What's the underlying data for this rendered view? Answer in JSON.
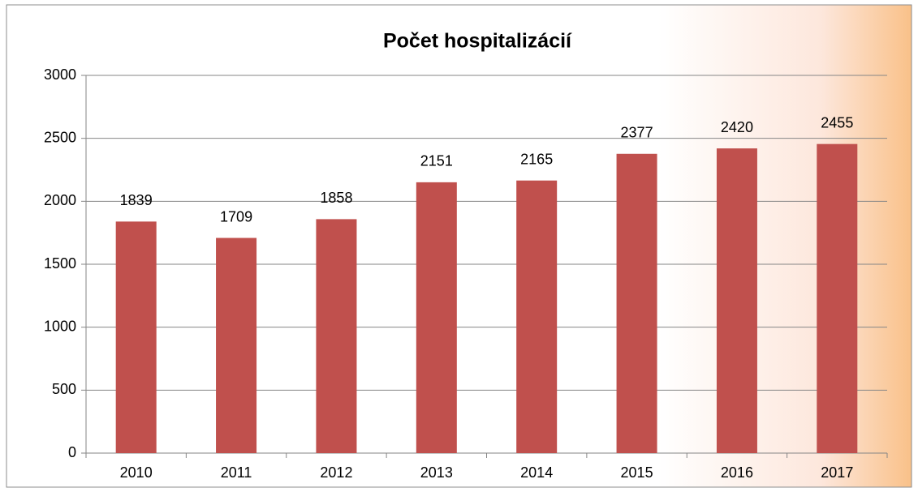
{
  "chart_data": {
    "type": "bar",
    "title": "Počet hospitalizácií",
    "categories": [
      "2010",
      "2011",
      "2012",
      "2013",
      "2014",
      "2015",
      "2016",
      "2017"
    ],
    "values": [
      1839,
      1709,
      1858,
      2151,
      2165,
      2377,
      2420,
      2455
    ],
    "color": "#c0504d",
    "ylim": [
      0,
      3000
    ],
    "yticks": [
      0,
      500,
      1000,
      1500,
      2000,
      2500,
      3000
    ],
    "grid": true
  }
}
